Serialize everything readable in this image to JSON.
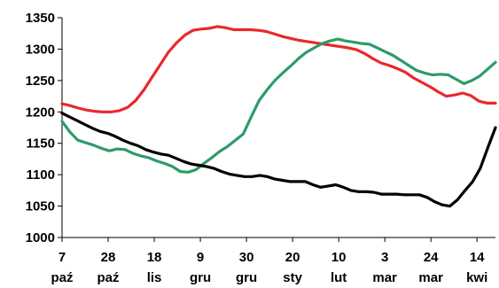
{
  "chart_data": {
    "type": "line",
    "title": "",
    "xlabel": "",
    "ylabel": "",
    "ylim": [
      1000,
      1350
    ],
    "y_ticks": [
      "1000",
      "1050",
      "1100",
      "1150",
      "1200",
      "1250",
      "1300",
      "1350"
    ],
    "x_ticks": [
      {
        "day": "7",
        "month": "paź"
      },
      {
        "day": "28",
        "month": "paź"
      },
      {
        "day": "18",
        "month": "lis"
      },
      {
        "day": "9",
        "month": "gru"
      },
      {
        "day": "30",
        "month": "gru"
      },
      {
        "day": "20",
        "month": "sty"
      },
      {
        "day": "10",
        "month": "lut"
      },
      {
        "day": "3",
        "month": "mar"
      },
      {
        "day": "24",
        "month": "mar"
      },
      {
        "day": "14",
        "month": "kwi"
      }
    ],
    "grid": false,
    "legend": "none",
    "series": [
      {
        "color": "#e8292c",
        "values": [
          1213,
          1210,
          1206,
          1203,
          1201,
          1200,
          1200,
          1202,
          1207,
          1218,
          1235,
          1255,
          1275,
          1295,
          1310,
          1322,
          1330,
          1332,
          1333,
          1336,
          1334,
          1331,
          1331,
          1331,
          1330,
          1328,
          1324,
          1320,
          1317,
          1314,
          1312,
          1310,
          1308,
          1306,
          1304,
          1302,
          1299,
          1293,
          1285,
          1278,
          1274,
          1269,
          1263,
          1254,
          1247,
          1240,
          1232,
          1225,
          1227,
          1230,
          1226,
          1217,
          1214,
          1214
        ]
      },
      {
        "color": "#2e9b68",
        "values": [
          1185,
          1168,
          1155,
          1151,
          1147,
          1142,
          1138,
          1141,
          1140,
          1134,
          1130,
          1127,
          1122,
          1118,
          1113,
          1105,
          1104,
          1108,
          1118,
          1127,
          1137,
          1145,
          1155,
          1165,
          1192,
          1218,
          1235,
          1250,
          1262,
          1273,
          1285,
          1295,
          1302,
          1309,
          1313,
          1316,
          1313,
          1311,
          1309,
          1308,
          1302,
          1296,
          1290,
          1282,
          1274,
          1266,
          1262,
          1259,
          1260,
          1259,
          1252,
          1245,
          1250,
          1257,
          1268,
          1279
        ]
      },
      {
        "color": "#000000",
        "values": [
          1198,
          1192,
          1186,
          1180,
          1174,
          1169,
          1166,
          1161,
          1155,
          1150,
          1146,
          1140,
          1136,
          1133,
          1131,
          1126,
          1121,
          1117,
          1115,
          1113,
          1110,
          1105,
          1101,
          1099,
          1097,
          1097,
          1099,
          1097,
          1093,
          1091,
          1089,
          1089,
          1089,
          1084,
          1080,
          1082,
          1084,
          1080,
          1075,
          1073,
          1073,
          1072,
          1069,
          1069,
          1069,
          1068,
          1068,
          1068,
          1064,
          1057,
          1052,
          1050,
          1060,
          1075,
          1089,
          1110,
          1143,
          1175
        ]
      }
    ]
  }
}
